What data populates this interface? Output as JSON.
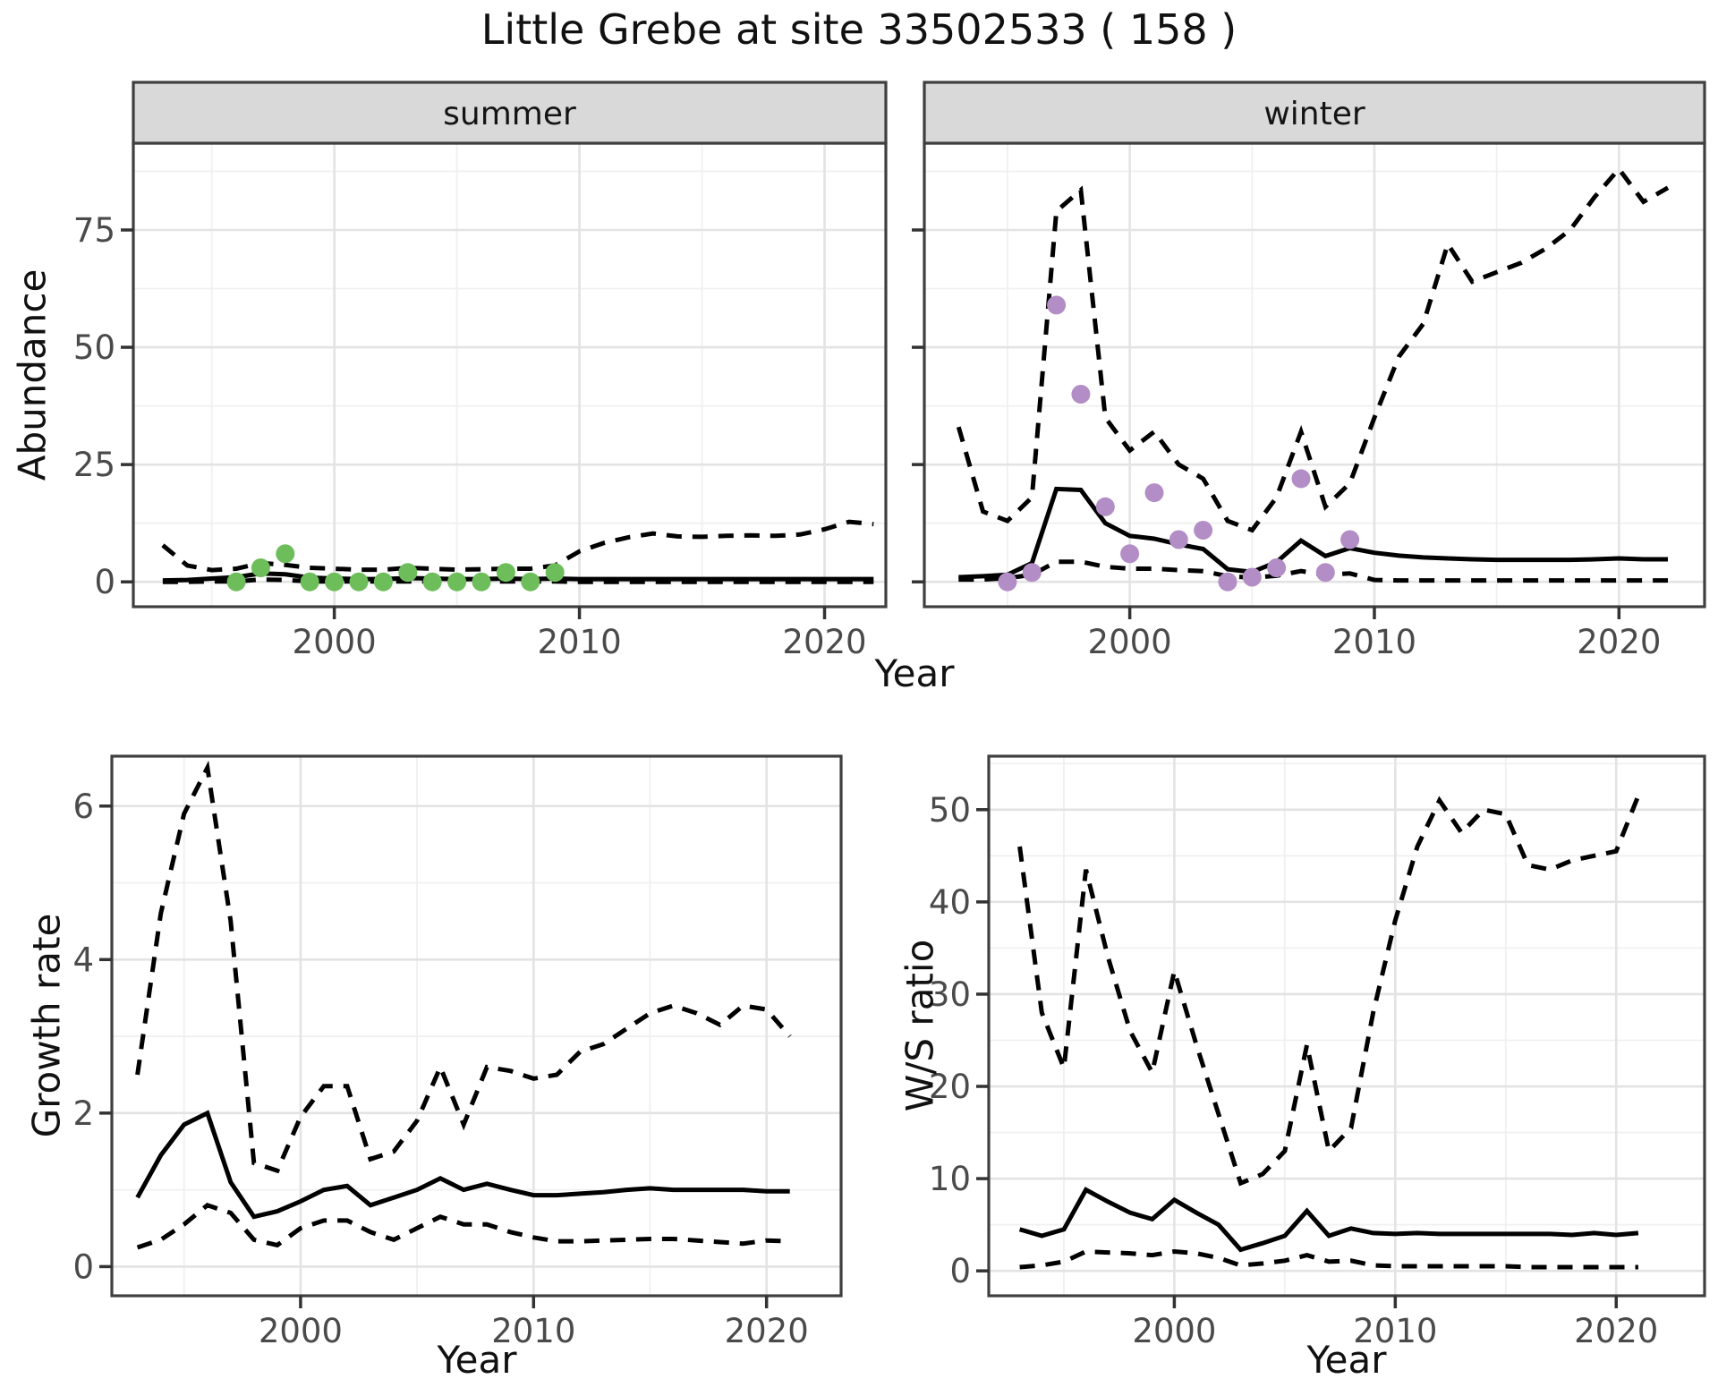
{
  "title": "Little Grebe at site 33502533 ( 158 )",
  "top_row": {
    "y_axis_label": "Abundance",
    "x_axis_label": "Year",
    "facet_labels": [
      "summer",
      "winter"
    ]
  },
  "colors": {
    "line": "#000000",
    "summer_points": "#6DBE5B",
    "winter_points": "#B38DC6",
    "strip_bg": "#D9D9D9",
    "strip_border": "#3F3F3F",
    "panel_border": "#3F3F3F",
    "grid_major": "#E3E3E3",
    "grid_minor": "#F0F0F0",
    "tick_text": "#4A4A4A",
    "tick_mark": "#333333"
  },
  "chart_data": [
    {
      "type": "line",
      "panel": "abundance-summer",
      "strip_label": "summer",
      "xlabel": "Year",
      "ylabel": "Abundance",
      "xlim": [
        1991.8,
        2022.5
      ],
      "ylim": [
        -5.3,
        93.5
      ],
      "x_ticks": {
        "major": [
          2000,
          2010,
          2020
        ],
        "minor": [
          1995,
          2005,
          2015
        ]
      },
      "y_ticks": {
        "major": [
          0,
          25,
          50,
          75
        ],
        "minor": [
          12.5,
          37.5,
          62.5,
          87.5
        ]
      },
      "grid": true,
      "legend": "none",
      "years": [
        1993,
        1994,
        1995,
        1996,
        1997,
        1998,
        1999,
        2000,
        2001,
        2002,
        2003,
        2004,
        2005,
        2006,
        2007,
        2008,
        2009,
        2010,
        2011,
        2012,
        2013,
        2014,
        2015,
        2016,
        2017,
        2018,
        2019,
        2020,
        2021,
        2022
      ],
      "series": [
        {
          "name": "fit",
          "style": "solid",
          "values": [
            0.3,
            0.4,
            0.7,
            1.0,
            1.8,
            1.6,
            0.9,
            0.7,
            0.6,
            0.6,
            0.8,
            0.7,
            0.6,
            0.6,
            0.7,
            0.6,
            0.7,
            0.6,
            0.6,
            0.6,
            0.6,
            0.6,
            0.6,
            0.6,
            0.6,
            0.6,
            0.6,
            0.6,
            0.6,
            0.6
          ]
        },
        {
          "name": "upper-ci",
          "style": "dashed",
          "values": [
            7.8,
            3.5,
            2.5,
            2.8,
            4.0,
            3.6,
            3.0,
            2.8,
            2.6,
            2.6,
            3.0,
            2.8,
            2.6,
            2.7,
            2.8,
            2.8,
            3.5,
            6.5,
            8.3,
            9.5,
            10.3,
            9.7,
            9.6,
            9.8,
            9.9,
            9.8,
            10.1,
            11.2,
            12.8,
            12.3
          ]
        },
        {
          "name": "lower-ci",
          "style": "dashed",
          "values": [
            0,
            0,
            0.1,
            0.1,
            0.5,
            0.4,
            0.1,
            0.1,
            0.1,
            0.1,
            0.1,
            0.1,
            0.1,
            0.1,
            0.1,
            0.1,
            0.1,
            0,
            0,
            0,
            0,
            0,
            0,
            0,
            0,
            0,
            0,
            0,
            0,
            0
          ]
        },
        {
          "name": "observed",
          "style": "points",
          "color": "#6DBE5B",
          "years": [
            1996,
            1997,
            1998,
            1999,
            2000,
            2001,
            2002,
            2003,
            2004,
            2005,
            2006,
            2007,
            2008,
            2009
          ],
          "values": [
            0,
            3,
            6,
            0,
            0,
            0,
            0,
            2,
            0,
            0,
            0,
            2,
            0,
            2
          ]
        }
      ]
    },
    {
      "type": "line",
      "panel": "abundance-winter",
      "strip_label": "winter",
      "xlabel": "Year",
      "ylabel": "",
      "xlim": [
        1991.6,
        2023.5
      ],
      "ylim": [
        -5.3,
        93.5
      ],
      "x_ticks": {
        "major": [
          2000,
          2010,
          2020
        ],
        "minor": [
          1995,
          2005,
          2015
        ]
      },
      "y_ticks": {
        "major": [
          0,
          25,
          50,
          75
        ],
        "minor": [
          12.5,
          37.5,
          62.5,
          87.5
        ]
      },
      "grid": true,
      "legend": "none",
      "years": [
        1993,
        1994,
        1995,
        1996,
        1997,
        1998,
        1999,
        2000,
        2001,
        2002,
        2003,
        2004,
        2005,
        2006,
        2007,
        2008,
        2009,
        2010,
        2011,
        2012,
        2013,
        2014,
        2015,
        2016,
        2017,
        2018,
        2019,
        2020,
        2021,
        2022
      ],
      "series": [
        {
          "name": "fit",
          "style": "solid",
          "values": [
            1.0,
            1.2,
            1.5,
            4.0,
            19.8,
            19.6,
            12.5,
            9.8,
            9.2,
            8.0,
            7.0,
            2.7,
            2.1,
            4.2,
            8.8,
            5.5,
            7.2,
            6.2,
            5.6,
            5.2,
            5.0,
            4.8,
            4.7,
            4.7,
            4.7,
            4.7,
            4.8,
            5.0,
            4.8,
            4.8
          ]
        },
        {
          "name": "upper-ci",
          "style": "dashed",
          "values": [
            33,
            15,
            13,
            18,
            79,
            83.5,
            35,
            28,
            32,
            25,
            22,
            13,
            11,
            18,
            32,
            16,
            21,
            35,
            48,
            55,
            72,
            64,
            66,
            68,
            71,
            75,
            82,
            88,
            81,
            84
          ]
        },
        {
          "name": "lower-ci",
          "style": "dashed",
          "values": [
            0.5,
            0.5,
            0.8,
            1.5,
            4.3,
            4.3,
            3.2,
            2.8,
            2.8,
            2.5,
            2.3,
            1.2,
            0.9,
            1.3,
            2.3,
            1.5,
            1.8,
            0.4,
            0.3,
            0.3,
            0.3,
            0.3,
            0.3,
            0.3,
            0.3,
            0.3,
            0.3,
            0.3,
            0.3,
            0.3
          ]
        },
        {
          "name": "observed",
          "style": "points",
          "color": "#B38DC6",
          "years": [
            1995,
            1996,
            1997,
            1998,
            1999,
            2000,
            2001,
            2002,
            2003,
            2004,
            2005,
            2006,
            2007,
            2008,
            2009
          ],
          "values": [
            0,
            2,
            59,
            40,
            16,
            6,
            19,
            9,
            11,
            0,
            1,
            3,
            22,
            2,
            9
          ]
        }
      ]
    },
    {
      "type": "line",
      "panel": "growth-rate",
      "strip_label": null,
      "xlabel": "Year",
      "ylabel": "Growth rate",
      "xlim": [
        1991.9,
        2023.2
      ],
      "ylim": [
        -0.38,
        6.65
      ],
      "x_ticks": {
        "major": [
          2000,
          2010,
          2020
        ],
        "minor": [
          1995,
          2005,
          2015
        ]
      },
      "y_ticks": {
        "major": [
          0,
          2,
          4,
          6
        ],
        "minor": [
          1,
          3,
          5
        ]
      },
      "grid": true,
      "legend": "none",
      "years": [
        1993,
        1994,
        1995,
        1996,
        1997,
        1998,
        1999,
        2000,
        2001,
        2002,
        2003,
        2004,
        2005,
        2006,
        2007,
        2008,
        2009,
        2010,
        2011,
        2012,
        2013,
        2014,
        2015,
        2016,
        2017,
        2018,
        2019,
        2020,
        2021
      ],
      "series": [
        {
          "name": "fit",
          "style": "solid",
          "values": [
            0.9,
            1.45,
            1.85,
            2.0,
            1.1,
            0.65,
            0.72,
            0.85,
            1.0,
            1.05,
            0.8,
            0.9,
            1.0,
            1.15,
            1.0,
            1.08,
            1.0,
            0.93,
            0.93,
            0.95,
            0.97,
            1.0,
            1.02,
            1.0,
            1.0,
            1.0,
            1.0,
            0.98,
            0.98
          ]
        },
        {
          "name": "upper-ci",
          "style": "dashed",
          "values": [
            2.5,
            4.6,
            5.9,
            6.5,
            4.5,
            1.35,
            1.25,
            1.95,
            2.35,
            2.35,
            1.4,
            1.5,
            1.9,
            2.6,
            1.85,
            2.6,
            2.55,
            2.45,
            2.5,
            2.8,
            2.9,
            3.1,
            3.3,
            3.4,
            3.3,
            3.15,
            3.4,
            3.35,
            3.0
          ]
        },
        {
          "name": "lower-ci",
          "style": "dashed",
          "values": [
            0.25,
            0.35,
            0.55,
            0.8,
            0.7,
            0.35,
            0.28,
            0.5,
            0.6,
            0.6,
            0.45,
            0.35,
            0.5,
            0.65,
            0.55,
            0.55,
            0.45,
            0.38,
            0.33,
            0.33,
            0.34,
            0.35,
            0.36,
            0.36,
            0.34,
            0.32,
            0.3,
            0.34,
            0.33
          ]
        }
      ]
    },
    {
      "type": "line",
      "panel": "ws-ratio",
      "strip_label": null,
      "xlabel": "Year",
      "ylabel": "W/S ratio",
      "xlim": [
        1991.6,
        2024.0
      ],
      "ylim": [
        -2.7,
        55.8
      ],
      "x_ticks": {
        "major": [
          2000,
          2010,
          2020
        ],
        "minor": [
          1995,
          2005,
          2015
        ]
      },
      "y_ticks": {
        "major": [
          0,
          10,
          20,
          30,
          40,
          50
        ],
        "minor": [
          5,
          15,
          25,
          35,
          45,
          55
        ]
      },
      "grid": true,
      "legend": "none",
      "years": [
        1993,
        1994,
        1995,
        1996,
        1997,
        1998,
        1999,
        2000,
        2001,
        2002,
        2003,
        2004,
        2005,
        2006,
        2007,
        2008,
        2009,
        2010,
        2011,
        2012,
        2013,
        2014,
        2015,
        2016,
        2017,
        2018,
        2019,
        2020,
        2021
      ],
      "series": [
        {
          "name": "fit",
          "style": "solid",
          "values": [
            4.5,
            3.8,
            4.5,
            8.8,
            7.5,
            6.3,
            5.6,
            7.7,
            6.3,
            5.0,
            2.3,
            3.0,
            3.8,
            6.5,
            3.8,
            4.6,
            4.1,
            4.0,
            4.1,
            4.0,
            4.0,
            4.0,
            4.0,
            4.0,
            4.0,
            3.9,
            4.1,
            3.9,
            4.1
          ]
        },
        {
          "name": "upper-ci",
          "style": "dashed",
          "values": [
            46,
            28,
            22,
            43.5,
            34,
            26,
            21.5,
            32.5,
            24.5,
            17,
            9.5,
            10.5,
            13,
            24.5,
            13,
            15.5,
            28,
            38,
            46,
            51,
            47.5,
            50,
            49.5,
            44,
            43.5,
            44.5,
            45,
            45.5,
            51.5
          ]
        },
        {
          "name": "lower-ci",
          "style": "dashed",
          "values": [
            0.4,
            0.6,
            1.0,
            2.1,
            2.0,
            1.9,
            1.7,
            2.1,
            1.9,
            1.4,
            0.6,
            0.8,
            1.1,
            1.7,
            1.0,
            1.1,
            0.6,
            0.5,
            0.5,
            0.5,
            0.5,
            0.5,
            0.5,
            0.4,
            0.4,
            0.4,
            0.4,
            0.4,
            0.4
          ]
        }
      ]
    }
  ]
}
